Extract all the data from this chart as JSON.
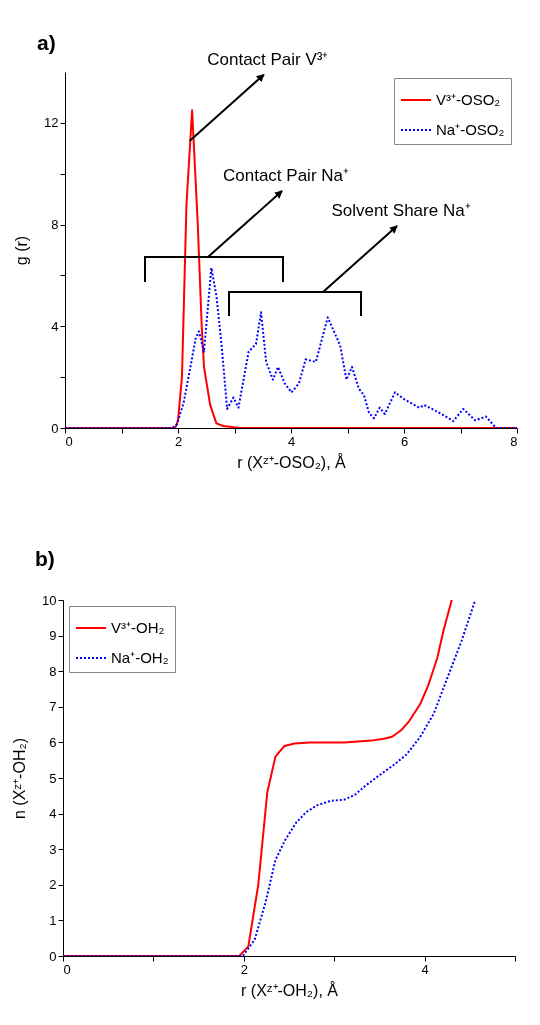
{
  "chart_data": [
    {
      "type": "line",
      "title": "a)",
      "xlabel": "r (Xᶻ⁺-OSO₂), Å",
      "ylabel": "g (r)",
      "xlim": [
        0,
        8
      ],
      "ylim": [
        0,
        14
      ],
      "xticks": [
        0,
        {
          "value": 1,
          "label": null
        },
        2,
        {
          "value": 3,
          "label": null
        },
        4,
        {
          "value": 5,
          "label": null
        },
        6,
        {
          "value": 7,
          "label": null
        },
        8
      ],
      "yticks": [
        0,
        {
          "value": 2,
          "label": null
        },
        4,
        {
          "value": 6,
          "label": null
        },
        8,
        {
          "value": 10,
          "label": null
        },
        12
      ],
      "grid": false,
      "legend": "top right",
      "annotations": [
        {
          "text": "Contact Pair V³⁺",
          "x": 2.21,
          "y": 11.3
        },
        "Contact Pair Na⁺",
        "Solvent Share Na⁺"
      ],
      "series": [
        {
          "name": "V³⁺-OSO₂",
          "color": "#ff0000",
          "line_style": "solid",
          "x": [
            0,
            1.95,
            2.0,
            2.07,
            2.15,
            2.25,
            2.35,
            2.42,
            2.46,
            2.57,
            2.68,
            2.8,
            3.1,
            8
          ],
          "values": [
            0,
            0,
            0.3,
            2.0,
            8.8,
            12.5,
            8.0,
            4.0,
            2.4,
            0.9,
            0.18,
            0.08,
            0,
            0
          ]
        },
        {
          "name": "Na⁺-OSO₂",
          "color": "#0000ff",
          "line_style": "dotted",
          "x": [
            0,
            1.9,
            1.98,
            2.1,
            2.22,
            2.31,
            2.37,
            2.46,
            2.59,
            2.68,
            2.77,
            2.87,
            2.98,
            3.07,
            3.25,
            3.38,
            3.47,
            3.56,
            3.68,
            3.77,
            3.89,
            4.01,
            4.14,
            4.26,
            4.44,
            4.65,
            4.87,
            4.98,
            5.08,
            5.2,
            5.29,
            5.38,
            5.47,
            5.57,
            5.66,
            5.84,
            5.99,
            6.27,
            6.36,
            6.54,
            6.78,
            6.87,
            7.05,
            7.26,
            7.45,
            7.63,
            8
          ],
          "values": [
            0,
            0,
            0.14,
            1.0,
            2.4,
            3.5,
            3.8,
            3.0,
            6.3,
            5.2,
            3.3,
            0.75,
            1.2,
            0.8,
            3.0,
            3.3,
            4.55,
            2.6,
            1.9,
            2.4,
            1.75,
            1.4,
            1.75,
            2.7,
            2.6,
            4.35,
            3.25,
            1.9,
            2.4,
            1.55,
            1.3,
            0.6,
            0.38,
            0.8,
            0.55,
            1.4,
            1.15,
            0.8,
            0.9,
            0.7,
            0.4,
            0.27,
            0.75,
            0.3,
            0.45,
            0,
            0
          ]
        }
      ]
    },
    {
      "type": "line",
      "title": "b)",
      "xlabel": "r (Xᶻ⁺-OH₂), Å",
      "ylabel": "n (Xᶻ⁺-OH₂)",
      "xlim": [
        0,
        5
      ],
      "ylim": [
        0,
        10
      ],
      "xticks": [
        0,
        {
          "value": 1,
          "label": null
        },
        2,
        {
          "value": 3,
          "label": null
        },
        4,
        {
          "value": 5,
          "label": null
        }
      ],
      "yticks": [
        0,
        1,
        2,
        3,
        4,
        5,
        6,
        7,
        8,
        9,
        10
      ],
      "grid": false,
      "legend": "top left",
      "series": [
        {
          "name": "V³⁺-OH₂",
          "color": "#ff0000",
          "line_style": "solid",
          "x": [
            0,
            1.95,
            2.05,
            2.16,
            2.26,
            2.35,
            2.45,
            2.56,
            2.73,
            3.11,
            3.41,
            3.55,
            3.64,
            3.74,
            3.83,
            3.95,
            4.04,
            4.14,
            4.21,
            4.3
          ],
          "values": [
            0,
            0,
            0.27,
            2.0,
            4.6,
            5.6,
            5.9,
            5.97,
            6.0,
            6.0,
            6.05,
            6.1,
            6.16,
            6.34,
            6.6,
            7.07,
            7.6,
            8.37,
            9.15,
            10
          ]
        },
        {
          "name": "Na⁺-OH₂",
          "color": "#0000ff",
          "line_style": "dotted",
          "x": [
            0,
            1.99,
            2.12,
            2.24,
            2.35,
            2.46,
            2.58,
            2.69,
            2.81,
            2.96,
            3.11,
            3.23,
            3.34,
            3.49,
            3.65,
            3.8,
            3.95,
            4.1,
            4.25,
            4.41,
            4.56
          ],
          "values": [
            0,
            0,
            0.46,
            1.5,
            2.7,
            3.27,
            3.75,
            4.04,
            4.23,
            4.36,
            4.39,
            4.53,
            4.77,
            5.06,
            5.35,
            5.66,
            6.15,
            6.8,
            7.8,
            8.86,
            10
          ]
        }
      ]
    }
  ]
}
